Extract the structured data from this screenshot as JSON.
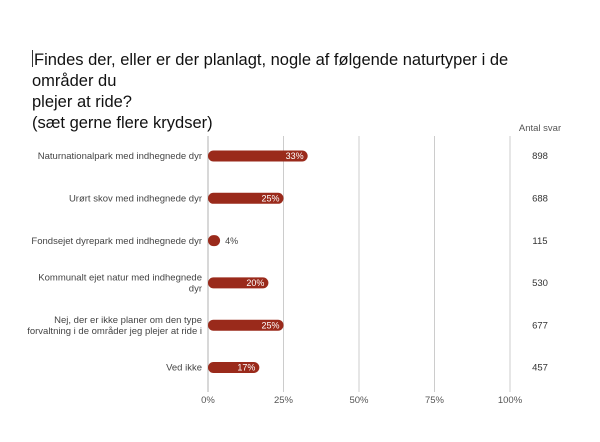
{
  "title_lines": [
    "Findes der, eller er der planlagt, nogle af følgende naturtyper i de områder du",
    "plejer at ride?",
    "(sæt gerne flere krydser)"
  ],
  "count_header": "Antal svar",
  "colors": {
    "bar": "#9a2a1b",
    "grid": "#cccccc",
    "axis": "#b0b0b0"
  },
  "chart_data": {
    "type": "bar",
    "orientation": "horizontal",
    "categories": [
      [
        "Naturnationalpark med indhegnede dyr"
      ],
      [
        "Urørt skov med indhegnede dyr"
      ],
      [
        "Fondsejet dyrepark med indhegnede dyr"
      ],
      [
        "Kommunalt ejet natur med indhegnede",
        "dyr"
      ],
      [
        "Nej, der er ikke planer om den type",
        "forvaltning i de områder jeg plejer at ride i"
      ],
      [
        "Ved ikke"
      ]
    ],
    "values": [
      33,
      25,
      4,
      20,
      25,
      17
    ],
    "value_labels": [
      "33%",
      "25%",
      "4%",
      "20%",
      "25%",
      "17%"
    ],
    "counts": [
      "898",
      "688",
      "115",
      "530",
      "677",
      "457"
    ],
    "xlim": [
      0,
      100
    ],
    "xticks": [
      0,
      25,
      50,
      75,
      100
    ],
    "xtick_labels": [
      "0%",
      "25%",
      "50%",
      "75%",
      "100%"
    ],
    "grid": true
  }
}
